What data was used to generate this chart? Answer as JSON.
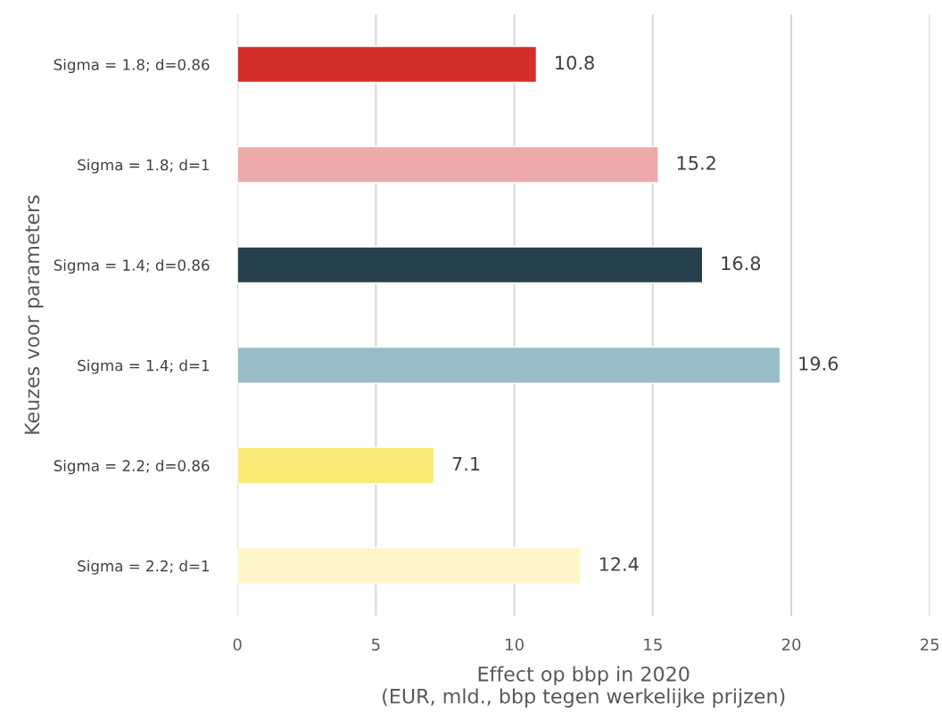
{
  "chart_data": {
    "type": "bar",
    "orientation": "horizontal",
    "xlabel": "Effect op bbp in 2020\n(EUR, mld., bbp tegen werkelijke prijzen)",
    "ylabel": "Keuzes voor parameters",
    "categories": [
      "Sigma = 1.8; d=0.86",
      "Sigma = 1.8; d=1",
      "Sigma = 1.4; d=0.86",
      "Sigma = 1.4; d=1",
      "Sigma = 2.2; d=0.86",
      "Sigma = 2.2; d=1"
    ],
    "values": [
      10.8,
      15.2,
      16.8,
      19.6,
      7.1,
      12.4
    ],
    "colors": [
      "#d42e2b",
      "#eeaaaa",
      "#27414c",
      "#99bdc8",
      "#fcea76",
      "#fef6c8"
    ],
    "xlim": [
      0,
      25
    ],
    "xticks": [
      0,
      5,
      10,
      15,
      20,
      25
    ],
    "grid": "x",
    "data_labels": true
  }
}
